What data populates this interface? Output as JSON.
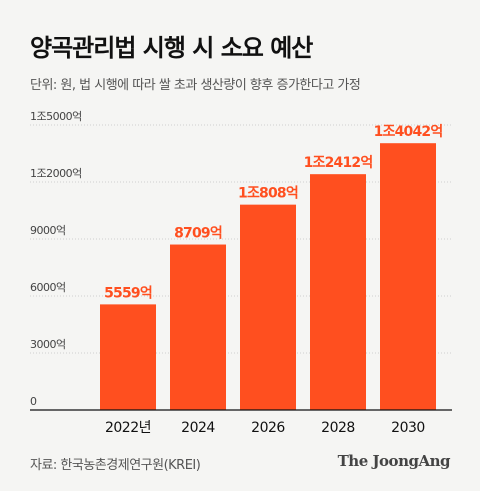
{
  "header": {
    "title": "양곡관리법 시행 시 소요 예산",
    "subtitle": "단위: 원, 법 시행에 따라 쌀 초과 생산량이 향후 증가한다고 가정"
  },
  "footer": {
    "source": "자료: 한국농촌경제연구원(KREI)",
    "brand": "The JoongAng"
  },
  "colors": {
    "bar": "#ff4f1f",
    "label": "#ff4f1f",
    "axis": "#111111",
    "grid": "#cfcfcf"
  },
  "chart_data": {
    "type": "bar",
    "categories": [
      "2022년",
      "2024",
      "2026",
      "2028",
      "2030"
    ],
    "values": [
      5559,
      8709,
      10808,
      12412,
      14042
    ],
    "data_labels": [
      "5559억",
      "8709억",
      "1조808억",
      "1조2412억",
      "1조4042억"
    ],
    "y_ticks": [
      0,
      3000,
      6000,
      9000,
      12000,
      15000
    ],
    "y_tick_labels": [
      "0",
      "3000억",
      "6000억",
      "9000억",
      "1조2000억",
      "1조5000억"
    ],
    "ylim": [
      0,
      15000
    ],
    "grid": true,
    "legend": "none"
  }
}
